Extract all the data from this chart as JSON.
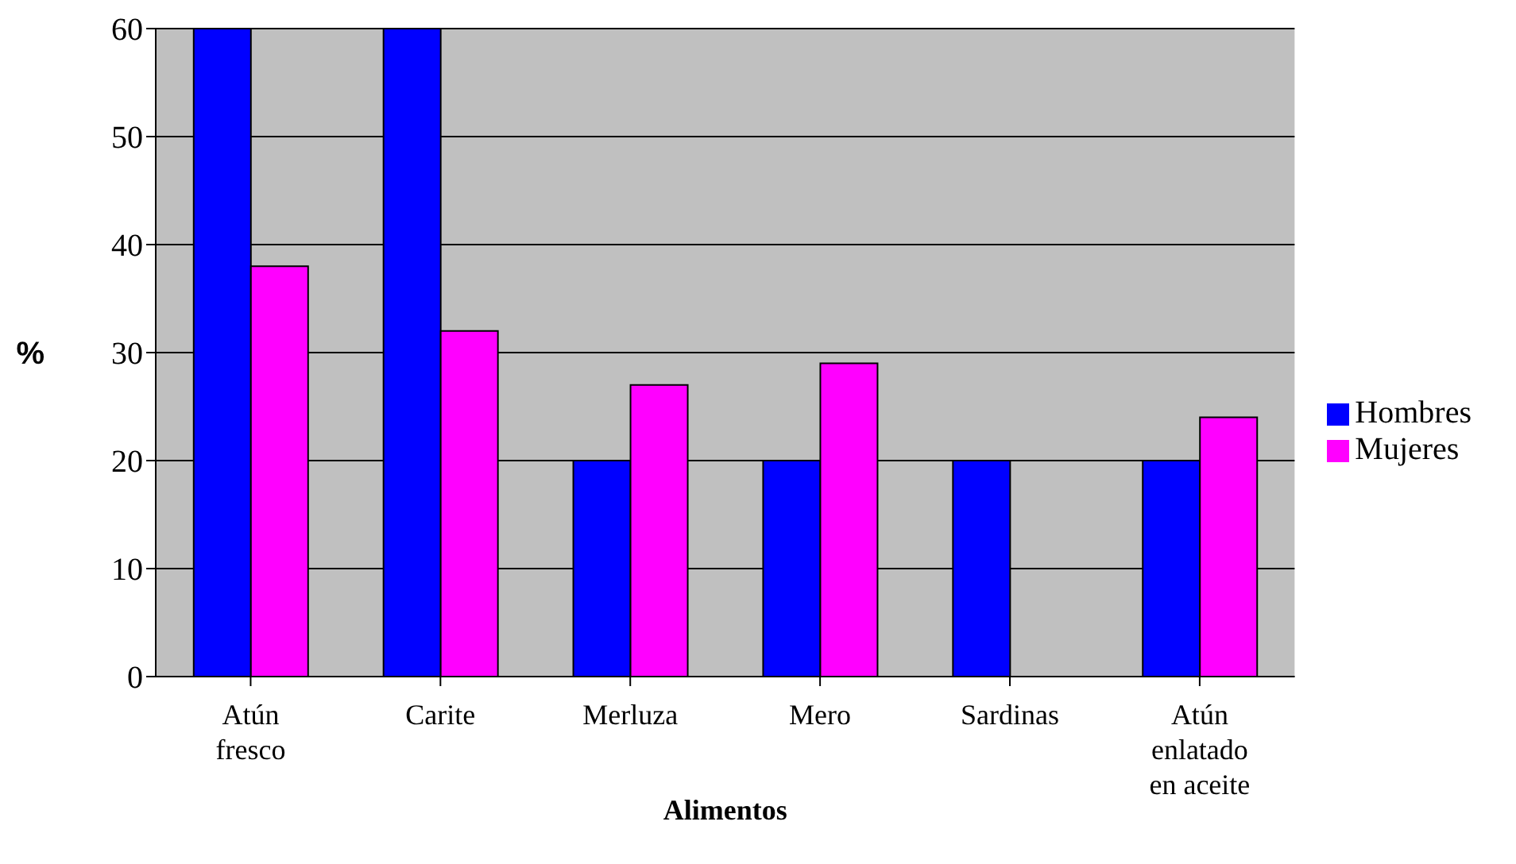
{
  "chart_data": {
    "type": "bar",
    "xlabel": "Alimentos",
    "ylabel": "%",
    "categories": [
      "Atún fresco",
      "Carite",
      "Merluza",
      "Mero",
      "Sardinas",
      "Atún enlatado en aceite"
    ],
    "series": [
      {
        "name": "Hombres",
        "color": "#0000ff",
        "values": [
          60,
          60,
          20,
          20,
          20,
          20
        ]
      },
      {
        "name": "Mujeres",
        "color": "#ff00ff",
        "values": [
          38,
          32,
          27,
          29,
          null,
          24
        ]
      }
    ],
    "ylim": [
      0,
      60
    ],
    "yticks": [
      0,
      10,
      20,
      30,
      40,
      50,
      60
    ],
    "grid": "y",
    "legend": "right"
  }
}
